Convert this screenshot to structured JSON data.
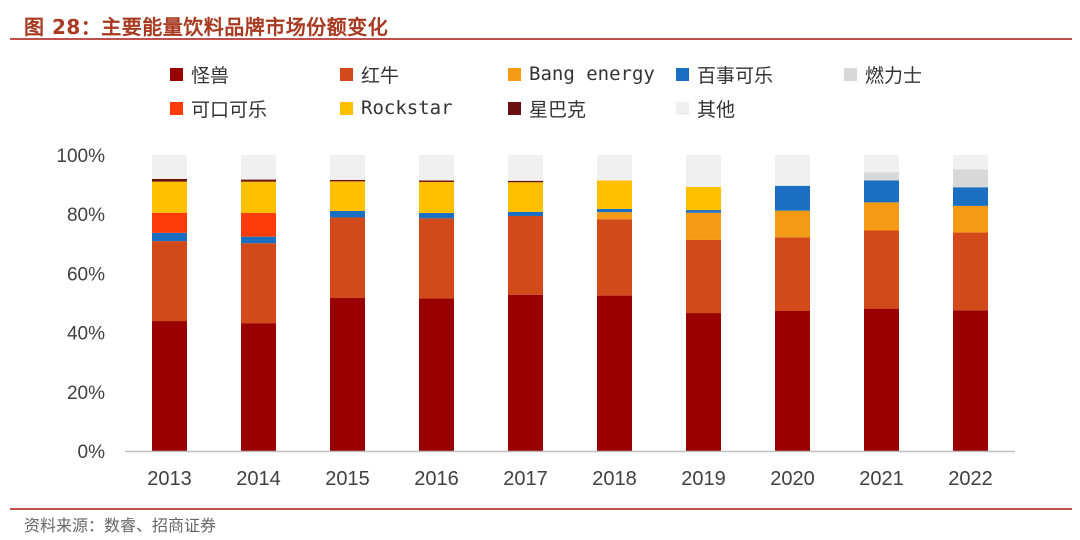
{
  "title": "图 28：主要能量饮料品牌市场份额变化",
  "footer": "资料来源：数睿、招商证券",
  "chart_data": {
    "type": "bar",
    "stacked": true,
    "categories": [
      "2013",
      "2014",
      "2015",
      "2016",
      "2017",
      "2018",
      "2019",
      "2020",
      "2021",
      "2022"
    ],
    "ylim": [
      0,
      100
    ],
    "yticks": [
      "0%",
      "20%",
      "40%",
      "60%",
      "80%",
      "100%"
    ],
    "legend_position": "top",
    "grid": false,
    "series": [
      {
        "name": "怪兽",
        "color": "#990000",
        "values": [
          43.9,
          43.2,
          51.7,
          51.5,
          52.8,
          52.5,
          46.6,
          47.3,
          48.1,
          47.5
        ]
      },
      {
        "name": "红牛",
        "color": "#d24a1a",
        "values": [
          27.0,
          27.0,
          27.2,
          27.1,
          26.6,
          25.8,
          24.7,
          24.9,
          26.4,
          26.3
        ]
      },
      {
        "name": "Bang energy",
        "color": "#f59a14",
        "values": [
          0,
          0,
          0,
          0,
          0,
          2.4,
          9.2,
          9.0,
          9.5,
          9.0
        ]
      },
      {
        "name": "百事可乐",
        "color": "#1a6fc2",
        "values": [
          2.8,
          2.2,
          2.2,
          1.8,
          1.4,
          1.1,
          0.9,
          8.4,
          7.4,
          6.3
        ]
      },
      {
        "name": "燃力士",
        "color": "#d8d8d8",
        "values": [
          0,
          0,
          0,
          0,
          0,
          0,
          0,
          0,
          2.8,
          6.0
        ]
      },
      {
        "name": "可口可乐",
        "color": "#ff3b0a",
        "values": [
          6.8,
          8.0,
          0,
          0,
          0,
          0,
          0,
          0,
          0,
          0
        ]
      },
      {
        "name": "Rockstar",
        "color": "#ffc000",
        "values": [
          10.5,
          10.6,
          10.0,
          10.5,
          10.0,
          9.6,
          7.8,
          0,
          0,
          0
        ]
      },
      {
        "name": "星巴克",
        "color": "#6b1010",
        "values": [
          0.9,
          0.7,
          0.5,
          0.5,
          0.5,
          0,
          0,
          0,
          0,
          0
        ]
      },
      {
        "name": "其他",
        "color": "#f0f0f0",
        "values": [
          8.1,
          8.3,
          8.4,
          8.6,
          8.7,
          8.6,
          10.8,
          10.4,
          5.8,
          4.9
        ]
      }
    ]
  }
}
